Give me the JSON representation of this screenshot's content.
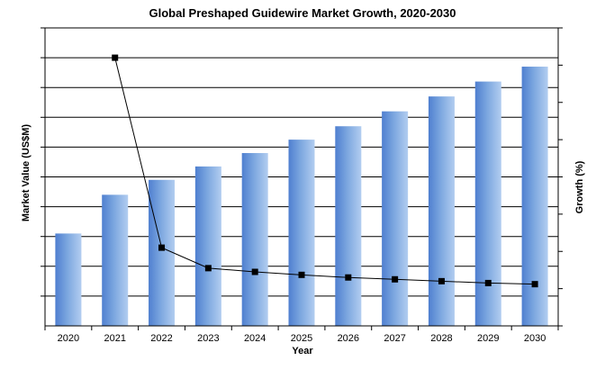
{
  "chart_data": {
    "type": "bar",
    "title": "Global Preshaped Guidewire Market Growth, 2020-2030",
    "xlabel": "Year",
    "ylabel": "Market Value (US$M)",
    "y2label": "Growth (%)",
    "categories": [
      "2020",
      "2021",
      "2022",
      "2023",
      "2024",
      "2025",
      "2026",
      "2027",
      "2028",
      "2029",
      "2030"
    ],
    "ylim": [
      0,
      10
    ],
    "y2lim": [
      0,
      8
    ],
    "grid": true,
    "y_tick_labels_shown": false,
    "series": [
      {
        "type": "bar",
        "axis": "left",
        "color": "#7ba6df",
        "values": [
          3.1,
          4.4,
          4.9,
          5.35,
          5.8,
          6.25,
          6.7,
          7.2,
          7.7,
          8.2,
          8.7
        ]
      },
      {
        "type": "line",
        "axis": "right",
        "color": "#000000",
        "values": [
          null,
          7.2,
          2.1,
          1.55,
          1.45,
          1.37,
          1.3,
          1.25,
          1.2,
          1.15,
          1.12
        ]
      }
    ]
  }
}
